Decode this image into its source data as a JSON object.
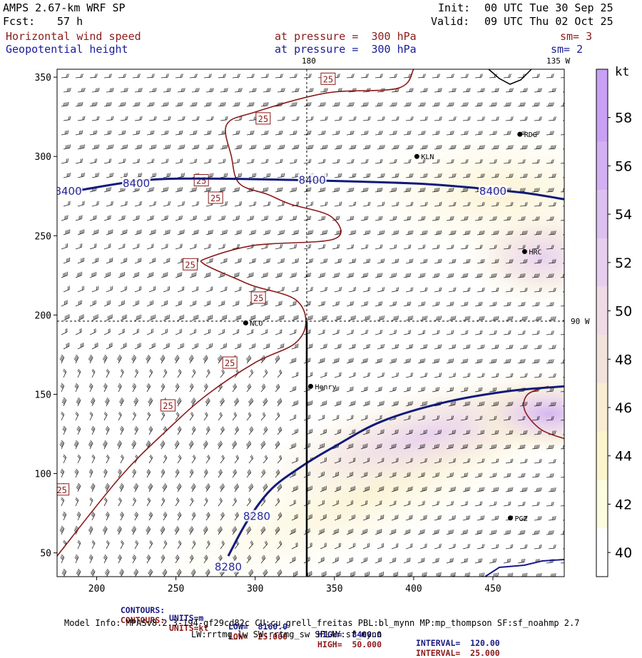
{
  "header": {
    "model_title": "AMPS 2.67-km WRF SP",
    "forecast_label": "Fcst:",
    "forecast_hours": "57 h",
    "init_label": "Init:",
    "init_time": "00 UTC Tue 30 Sep 25",
    "valid_label": "Valid:",
    "valid_time": "09 UTC Thu 02 Oct 25",
    "field1_name": "Horizontal wind speed",
    "field1_level": "at pressure =  300 hPa",
    "field1_sm": "sm= 3",
    "field2_name": "Geopotential height",
    "field2_level": "at pressure =  300 hPa",
    "field2_sm": "sm= 2"
  },
  "map": {
    "lon_label_top_180": "180",
    "lon_label_top_135w": "135 W",
    "lon_label_right_90w": "90 W",
    "stations": [
      "RDG",
      "KLN",
      "HRC",
      "NCO",
      "Henry",
      "PGZ"
    ]
  },
  "colorbar": {
    "unit": "kt",
    "levels": [
      40,
      42,
      44,
      46,
      48,
      50,
      52,
      54,
      56,
      58
    ],
    "colors": [
      "#ffffff",
      "#fdfbe0",
      "#fbf4cc",
      "#f8ecd2",
      "#f2e2dc",
      "#eedbe6",
      "#e6cfee",
      "#dcc0f0",
      "#d2b0f2",
      "#c8a0f4"
    ]
  },
  "chart_data": {
    "type": "contour",
    "title": "Horizontal wind speed / Geopotential height at pressure = 300 hPa",
    "xlim": [
      175,
      495
    ],
    "ylim": [
      35,
      355
    ],
    "x_ticks": [
      200,
      250,
      300,
      350,
      400,
      450
    ],
    "y_ticks": [
      50,
      100,
      150,
      200,
      250,
      300,
      350
    ],
    "height_contours": [
      {
        "label": "8400",
        "value": 8400,
        "units": "m",
        "points": [
          [
            185,
            278
          ],
          [
            230,
            285
          ],
          [
            270,
            286
          ],
          [
            330,
            285
          ],
          [
            400,
            283
          ],
          [
            440,
            280
          ],
          [
            470,
            277
          ],
          [
            495,
            273
          ]
        ],
        "labels_at": [
          [
            182,
            278
          ],
          [
            225,
            283
          ],
          [
            336,
            285
          ],
          [
            450,
            278
          ]
        ]
      },
      {
        "label": "8280",
        "value": 8280,
        "units": "m",
        "points": [
          [
            283,
            48
          ],
          [
            295,
            70
          ],
          [
            310,
            90
          ],
          [
            330,
            105
          ],
          [
            350,
            117
          ],
          [
            380,
            133
          ],
          [
            420,
            145
          ],
          [
            460,
            152
          ],
          [
            495,
            155
          ]
        ],
        "labels_at": [
          [
            301,
            73
          ],
          [
            283,
            41
          ]
        ]
      }
    ],
    "speed_contours": [
      {
        "label": "25",
        "value": 25,
        "units": "kt",
        "points": [
          [
            175,
            48
          ],
          [
            215,
            98
          ],
          [
            245,
            128
          ],
          [
            270,
            150
          ],
          [
            300,
            170
          ],
          [
            325,
            182
          ],
          [
            332,
            196
          ],
          [
            325,
            210
          ],
          [
            300,
            218
          ],
          [
            290,
            222
          ],
          [
            268,
            232
          ],
          [
            270,
            236
          ],
          [
            300,
            244
          ],
          [
            350,
            248
          ],
          [
            348,
            262
          ],
          [
            322,
            270
          ],
          [
            308,
            276
          ],
          [
            290,
            283
          ],
          [
            285,
            300
          ],
          [
            282,
            320
          ],
          [
            300,
            328
          ],
          [
            345,
            340
          ],
          [
            390,
            343
          ],
          [
            400,
            355
          ]
        ],
        "labels_at": [
          [
            178,
            90
          ],
          [
            245,
            143
          ],
          [
            284,
            170
          ],
          [
            302,
            211
          ],
          [
            259,
            232
          ],
          [
            275,
            274
          ],
          [
            266,
            285
          ],
          [
            305,
            324
          ],
          [
            346,
            349
          ]
        ]
      },
      {
        "label": "50",
        "value": 50,
        "units": "kt",
        "points": [
          [
            485,
            155
          ],
          [
            472,
            150
          ],
          [
            470,
            140
          ],
          [
            480,
            128
          ],
          [
            495,
            122
          ]
        ],
        "labels_at": []
      }
    ],
    "contour_info": [
      {
        "field": "height",
        "label": "CONTOURS:",
        "units": "UNITS=m",
        "low": "LOW=  8160.0",
        "high": "HIGH=  8400.0",
        "interval": "INTERVAL=  120.00"
      },
      {
        "field": "speed",
        "label": "CONTOURS:",
        "units": "UNITS=kt",
        "low": "LOW=  25.000",
        "high": "HIGH=  50.000",
        "interval": "INTERVAL=  25.000"
      }
    ],
    "cross_lines": {
      "lon_180_x": 335,
      "lat_90w_y": 196
    }
  },
  "footer": {
    "model_info_line1": "Model Info: MPASv8.2.3-194-gf29cd82c CU:cu_grell_freitas PBL:bl_mynn MP:mp_thompson SF:sf_noahmp 2.7",
    "model_info_line2": "LW:rrtmg_lw SW:rrtmg_sw SFLAY:sf_mynn"
  }
}
